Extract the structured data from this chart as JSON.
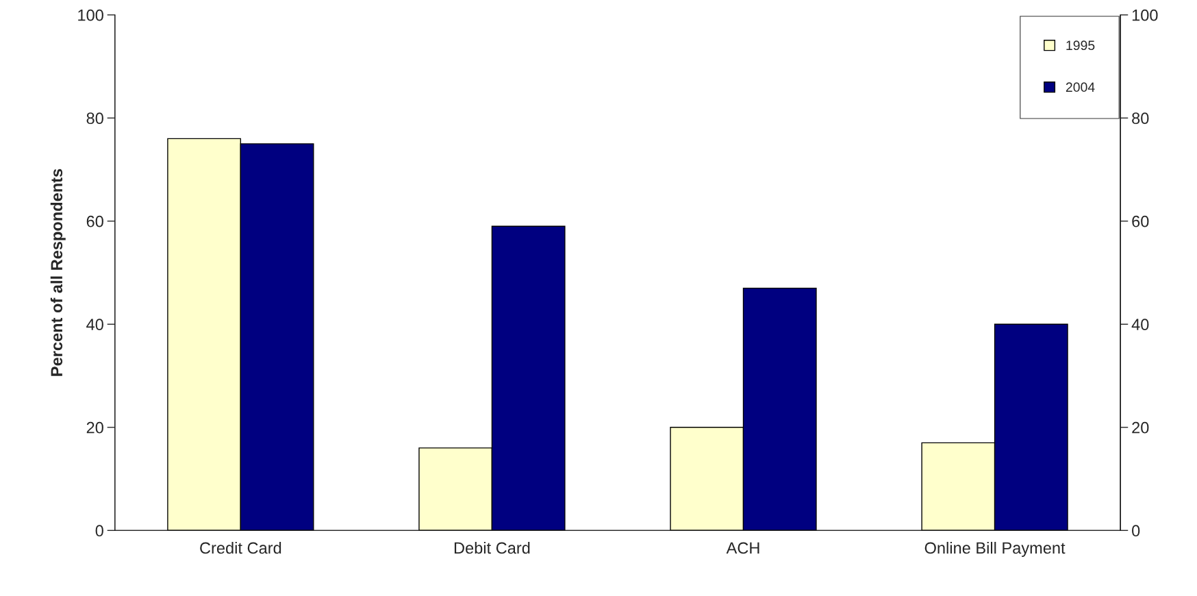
{
  "chart_data": {
    "type": "bar",
    "ylabel": "Percent of all Respondents",
    "categories": [
      "Credit Card",
      "Debit Card",
      "ACH",
      "Online Bill Payment"
    ],
    "series": [
      {
        "name": "1995",
        "color": "#ffffcc",
        "values": [
          76,
          16,
          20,
          17
        ]
      },
      {
        "name": "2004",
        "color": "#000080",
        "values": [
          75,
          59,
          47,
          40
        ]
      }
    ],
    "ylim": [
      0,
      100
    ],
    "yticks": [
      0,
      20,
      40,
      60,
      80,
      100
    ],
    "y2lim": [
      0,
      100
    ],
    "y2ticks": [
      0,
      20,
      40,
      60,
      80,
      100
    ],
    "grid": false,
    "legend": "top right"
  }
}
